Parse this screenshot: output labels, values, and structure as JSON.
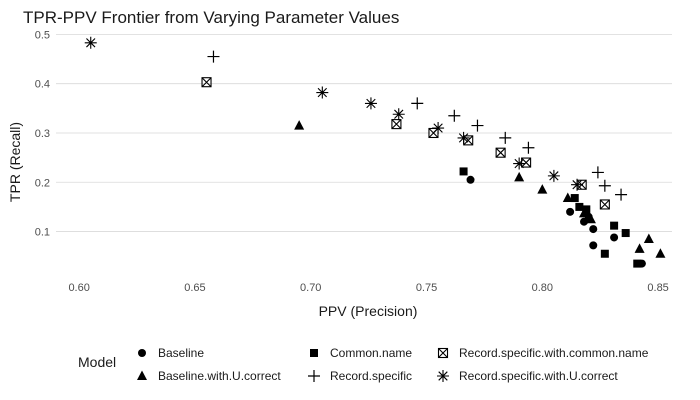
{
  "chart_data": {
    "type": "scatter",
    "title": "TPR-PPV Frontier from Varying Parameter Values",
    "xlabel": "PPV (Precision)",
    "ylabel": "TPR (Recall)",
    "xlim": [
      0.59,
      0.856
    ],
    "ylim": [
      0.02,
      0.515
    ],
    "xticks": [
      0.6,
      0.65,
      0.7,
      0.75,
      0.8,
      0.85
    ],
    "xtick_labels": [
      "0.60",
      "0.65",
      "0.70",
      "0.75",
      "0.80",
      "0.85"
    ],
    "yticks": [
      0.1,
      0.2,
      0.3,
      0.4,
      0.5
    ],
    "ytick_labels": [
      "0.1",
      "0.2",
      "0.3",
      "0.4",
      "0.5"
    ],
    "grid": "horizontal major lines only",
    "legend": {
      "title": "Model",
      "position": "bottom"
    },
    "series": [
      {
        "name": "Baseline",
        "marker": "circle",
        "points": [
          {
            "x": 0.769,
            "y": 0.205
          },
          {
            "x": 0.812,
            "y": 0.14
          },
          {
            "x": 0.818,
            "y": 0.12
          },
          {
            "x": 0.82,
            "y": 0.13
          },
          {
            "x": 0.822,
            "y": 0.105
          },
          {
            "x": 0.822,
            "y": 0.072
          },
          {
            "x": 0.831,
            "y": 0.088
          },
          {
            "x": 0.843,
            "y": 0.035
          }
        ]
      },
      {
        "name": "Baseline.with.U.correct",
        "marker": "triangle",
        "points": [
          {
            "x": 0.695,
            "y": 0.315
          },
          {
            "x": 0.79,
            "y": 0.21
          },
          {
            "x": 0.8,
            "y": 0.185
          },
          {
            "x": 0.811,
            "y": 0.168
          },
          {
            "x": 0.818,
            "y": 0.137
          },
          {
            "x": 0.821,
            "y": 0.125
          },
          {
            "x": 0.842,
            "y": 0.065
          },
          {
            "x": 0.846,
            "y": 0.085
          },
          {
            "x": 0.851,
            "y": 0.055
          }
        ]
      },
      {
        "name": "Common.name",
        "marker": "square",
        "points": [
          {
            "x": 0.766,
            "y": 0.222
          },
          {
            "x": 0.814,
            "y": 0.168
          },
          {
            "x": 0.816,
            "y": 0.15
          },
          {
            "x": 0.819,
            "y": 0.145
          },
          {
            "x": 0.827,
            "y": 0.055
          },
          {
            "x": 0.831,
            "y": 0.112
          },
          {
            "x": 0.836,
            "y": 0.097
          },
          {
            "x": 0.841,
            "y": 0.035
          }
        ]
      },
      {
        "name": "Record.specific",
        "marker": "plus",
        "points": [
          {
            "x": 0.658,
            "y": 0.455
          },
          {
            "x": 0.746,
            "y": 0.36
          },
          {
            "x": 0.762,
            "y": 0.335
          },
          {
            "x": 0.772,
            "y": 0.315
          },
          {
            "x": 0.784,
            "y": 0.29
          },
          {
            "x": 0.794,
            "y": 0.27
          },
          {
            "x": 0.824,
            "y": 0.22
          },
          {
            "x": 0.827,
            "y": 0.193
          },
          {
            "x": 0.834,
            "y": 0.175
          }
        ]
      },
      {
        "name": "Record.specific.with.common.name",
        "marker": "boxed-x",
        "points": [
          {
            "x": 0.655,
            "y": 0.403
          },
          {
            "x": 0.737,
            "y": 0.318
          },
          {
            "x": 0.753,
            "y": 0.3
          },
          {
            "x": 0.768,
            "y": 0.285
          },
          {
            "x": 0.782,
            "y": 0.26
          },
          {
            "x": 0.793,
            "y": 0.24
          },
          {
            "x": 0.817,
            "y": 0.195
          },
          {
            "x": 0.827,
            "y": 0.155
          }
        ]
      },
      {
        "name": "Record.specific.with.U.correct",
        "marker": "asterisk",
        "points": [
          {
            "x": 0.605,
            "y": 0.483
          },
          {
            "x": 0.705,
            "y": 0.382
          },
          {
            "x": 0.726,
            "y": 0.36
          },
          {
            "x": 0.738,
            "y": 0.338
          },
          {
            "x": 0.755,
            "y": 0.31
          },
          {
            "x": 0.766,
            "y": 0.29
          },
          {
            "x": 0.79,
            "y": 0.238
          },
          {
            "x": 0.805,
            "y": 0.213
          },
          {
            "x": 0.815,
            "y": 0.195
          }
        ]
      }
    ]
  }
}
